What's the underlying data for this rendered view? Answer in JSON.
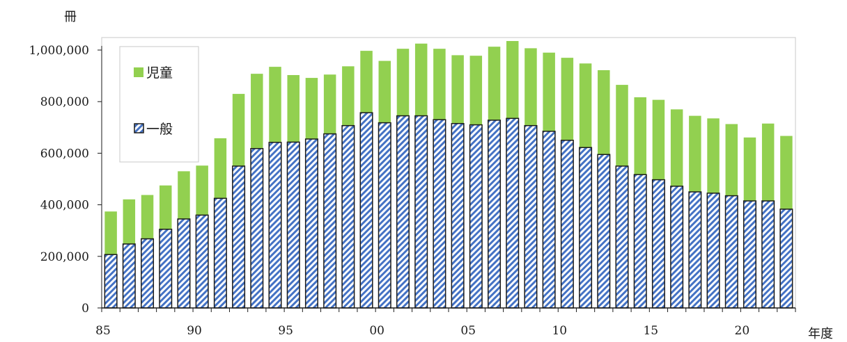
{
  "chart_data": {
    "type": "bar",
    "stacked": true,
    "y_unit_label": "冊",
    "x_unit_label": "年度",
    "ylim": [
      0,
      1000000
    ],
    "y_ticks": [
      "0",
      "200,000",
      "400,000",
      "600,000",
      "800,000",
      "1,000,000"
    ],
    "y_tick_values": [
      0,
      200000,
      400000,
      600000,
      800000,
      1000000
    ],
    "categories": [
      "1985",
      "1986",
      "1987",
      "1988",
      "1989",
      "1990",
      "1991",
      "1992",
      "1993",
      "1994",
      "1995",
      "1996",
      "1997",
      "1998",
      "1999",
      "2000",
      "2001",
      "2002",
      "2003",
      "2004",
      "2005",
      "2006",
      "2007",
      "2008",
      "2009",
      "2010",
      "2011",
      "2012",
      "2013",
      "2014",
      "2015",
      "2016",
      "2017",
      "2018",
      "2019",
      "2020",
      "2021",
      "2022"
    ],
    "x_tick_labels": [
      {
        "index": 0,
        "label": "85"
      },
      {
        "index": 5,
        "label": "90"
      },
      {
        "index": 10,
        "label": "95"
      },
      {
        "index": 15,
        "label": "00"
      },
      {
        "index": 20,
        "label": "05"
      },
      {
        "index": 25,
        "label": "10"
      },
      {
        "index": 30,
        "label": "15"
      },
      {
        "index": 35,
        "label": "20"
      }
    ],
    "grid": false,
    "legend_position": "top-left",
    "series": [
      {
        "name": "一般",
        "color": "#4472c4",
        "pattern": "diagonal-hatch",
        "values": [
          207000,
          248000,
          268000,
          305000,
          345000,
          360000,
          425000,
          550000,
          618000,
          642000,
          643000,
          655000,
          675000,
          707000,
          757000,
          718000,
          745000,
          745000,
          730000,
          715000,
          710000,
          728000,
          735000,
          707000,
          685000,
          650000,
          622000,
          595000,
          550000,
          517000,
          497000,
          472000,
          450000,
          445000,
          435000,
          415000,
          415000,
          383000
        ]
      },
      {
        "name": "児童",
        "color": "#92d050",
        "pattern": "solid",
        "values": [
          167000,
          173000,
          170000,
          170000,
          185000,
          192000,
          233000,
          280000,
          290000,
          293000,
          260000,
          237000,
          230000,
          230000,
          240000,
          240000,
          260000,
          280000,
          275000,
          265000,
          268000,
          285000,
          300000,
          300000,
          305000,
          320000,
          326000,
          327000,
          315000,
          300000,
          310000,
          298000,
          295000,
          290000,
          278000,
          246000,
          300000,
          284000
        ]
      }
    ]
  }
}
